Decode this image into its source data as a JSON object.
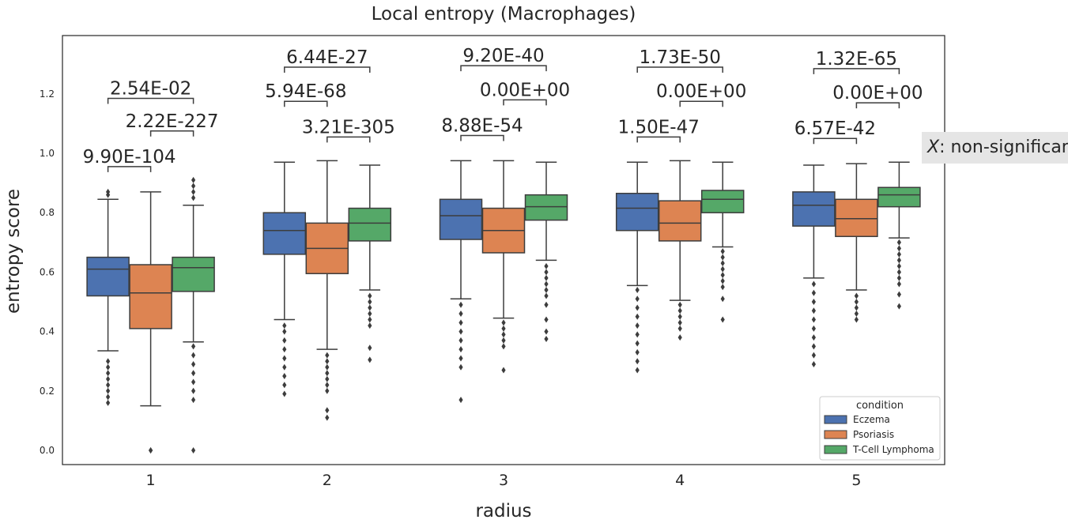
{
  "chart_data": {
    "type": "box",
    "title": "Local entropy (Macrophages)",
    "xlabel": "radius",
    "ylabel": "entropy score",
    "categories": [
      "1",
      "2",
      "3",
      "4",
      "5"
    ],
    "ylim": [
      -0.05,
      1.4
    ],
    "yticks": [
      0.0,
      0.2,
      0.4,
      0.6,
      0.8,
      1.0,
      1.2
    ],
    "ytick_labels": [
      "0.0",
      "0.2",
      "0.4",
      "0.6",
      "0.8",
      "1.0",
      "1.2"
    ],
    "grid": false,
    "legend": {
      "title": "condition",
      "position": "bottom-right",
      "entries": [
        "Eczema",
        "Psoriasis",
        "T-Cell Lymphoma"
      ]
    },
    "series": [
      {
        "name": "Eczema",
        "color": "#4c72b0",
        "boxes": [
          {
            "whislo": 0.335,
            "q1": 0.52,
            "med": 0.61,
            "q3": 0.65,
            "whishi": 0.845,
            "fliers_low": [
              0.3,
              0.28,
              0.26,
              0.24,
              0.22,
              0.2,
              0.18,
              0.16
            ],
            "fliers_high": [
              0.86,
              0.87
            ]
          },
          {
            "whislo": 0.44,
            "q1": 0.66,
            "med": 0.74,
            "q3": 0.8,
            "whishi": 0.97,
            "fliers_low": [
              0.42,
              0.4,
              0.37,
              0.34,
              0.31,
              0.28,
              0.25,
              0.22,
              0.19
            ],
            "fliers_high": []
          },
          {
            "whislo": 0.51,
            "q1": 0.71,
            "med": 0.79,
            "q3": 0.845,
            "whishi": 0.975,
            "fliers_low": [
              0.49,
              0.46,
              0.43,
              0.4,
              0.37,
              0.34,
              0.31,
              0.28,
              0.17
            ],
            "fliers_high": []
          },
          {
            "whislo": 0.555,
            "q1": 0.74,
            "med": 0.815,
            "q3": 0.865,
            "whishi": 0.97,
            "fliers_low": [
              0.54,
              0.51,
              0.48,
              0.45,
              0.42,
              0.39,
              0.36,
              0.33,
              0.3,
              0.27
            ],
            "fliers_high": []
          },
          {
            "whislo": 0.58,
            "q1": 0.755,
            "med": 0.825,
            "q3": 0.87,
            "whishi": 0.96,
            "fliers_low": [
              0.56,
              0.53,
              0.5,
              0.47,
              0.44,
              0.41,
              0.38,
              0.35,
              0.32,
              0.29
            ],
            "fliers_high": []
          }
        ]
      },
      {
        "name": "Psoriasis",
        "color": "#dd8452",
        "boxes": [
          {
            "whislo": 0.15,
            "q1": 0.41,
            "med": 0.53,
            "q3": 0.625,
            "whishi": 0.87,
            "fliers_low": [
              0.0,
              0.0
            ],
            "fliers_high": []
          },
          {
            "whislo": 0.34,
            "q1": 0.595,
            "med": 0.68,
            "q3": 0.765,
            "whishi": 0.975,
            "fliers_low": [
              0.32,
              0.3,
              0.28,
              0.26,
              0.24,
              0.22,
              0.2,
              0.135,
              0.11
            ],
            "fliers_high": []
          },
          {
            "whislo": 0.445,
            "q1": 0.665,
            "med": 0.74,
            "q3": 0.815,
            "whishi": 0.975,
            "fliers_low": [
              0.43,
              0.41,
              0.39,
              0.37,
              0.35,
              0.27
            ],
            "fliers_high": []
          },
          {
            "whislo": 0.505,
            "q1": 0.705,
            "med": 0.765,
            "q3": 0.84,
            "whishi": 0.975,
            "fliers_low": [
              0.49,
              0.47,
              0.45,
              0.43,
              0.41,
              0.38
            ],
            "fliers_high": []
          },
          {
            "whislo": 0.54,
            "q1": 0.72,
            "med": 0.78,
            "q3": 0.845,
            "whishi": 0.965,
            "fliers_low": [
              0.52,
              0.5,
              0.48,
              0.46,
              0.44
            ],
            "fliers_high": []
          }
        ]
      },
      {
        "name": "T-Cell Lymphoma",
        "color": "#55a868",
        "boxes": [
          {
            "whislo": 0.365,
            "q1": 0.535,
            "med": 0.615,
            "q3": 0.65,
            "whishi": 0.825,
            "fliers_low": [
              0.35,
              0.32,
              0.29,
              0.26,
              0.23,
              0.2,
              0.17,
              0.0
            ],
            "fliers_high": [
              0.85,
              0.87,
              0.89,
              0.91
            ]
          },
          {
            "whislo": 0.54,
            "q1": 0.705,
            "med": 0.765,
            "q3": 0.815,
            "whishi": 0.96,
            "fliers_low": [
              0.52,
              0.5,
              0.48,
              0.46,
              0.44,
              0.42,
              0.345,
              0.305
            ],
            "fliers_high": []
          },
          {
            "whislo": 0.64,
            "q1": 0.775,
            "med": 0.82,
            "q3": 0.86,
            "whishi": 0.97,
            "fliers_low": [
              0.62,
              0.6,
              0.58,
              0.56,
              0.54,
              0.52,
              0.49,
              0.44,
              0.4,
              0.375
            ],
            "fliers_high": []
          },
          {
            "whislo": 0.685,
            "q1": 0.8,
            "med": 0.845,
            "q3": 0.875,
            "whishi": 0.97,
            "fliers_low": [
              0.67,
              0.65,
              0.63,
              0.61,
              0.59,
              0.57,
              0.55,
              0.51,
              0.44
            ],
            "fliers_high": []
          },
          {
            "whislo": 0.715,
            "q1": 0.82,
            "med": 0.86,
            "q3": 0.885,
            "whishi": 0.97,
            "fliers_low": [
              0.7,
              0.68,
              0.66,
              0.64,
              0.62,
              0.6,
              0.58,
              0.56,
              0.525,
              0.485
            ],
            "fliers_high": []
          }
        ]
      }
    ],
    "annotations": [
      {
        "category": "1",
        "pair": [
          0,
          1
        ],
        "text": "9.90E-104",
        "y": 0.955
      },
      {
        "category": "1",
        "pair": [
          1,
          2
        ],
        "text": "2.22E-227",
        "y": 1.075
      },
      {
        "category": "1",
        "pair": [
          0,
          2
        ],
        "text": "2.54E-02",
        "y": 1.185
      },
      {
        "category": "2",
        "pair": [
          1,
          2
        ],
        "text": "3.21E-305",
        "y": 1.055
      },
      {
        "category": "2",
        "pair": [
          0,
          1
        ],
        "text": "5.94E-68",
        "y": 1.175
      },
      {
        "category": "2",
        "pair": [
          0,
          2
        ],
        "text": "6.44E-27",
        "y": 1.29
      },
      {
        "category": "3",
        "pair": [
          0,
          1
        ],
        "text": "8.88E-54",
        "y": 1.06
      },
      {
        "category": "3",
        "pair": [
          1,
          2
        ],
        "text": "0.00E+00",
        "y": 1.18
      },
      {
        "category": "3",
        "pair": [
          0,
          2
        ],
        "text": "9.20E-40",
        "y": 1.295
      },
      {
        "category": "4",
        "pair": [
          0,
          1
        ],
        "text": "1.50E-47",
        "y": 1.055
      },
      {
        "category": "4",
        "pair": [
          1,
          2
        ],
        "text": "0.00E+00",
        "y": 1.175
      },
      {
        "category": "4",
        "pair": [
          0,
          2
        ],
        "text": "1.73E-50",
        "y": 1.29
      },
      {
        "category": "5",
        "pair": [
          0,
          1
        ],
        "text": "6.57E-42",
        "y": 1.05
      },
      {
        "category": "5",
        "pair": [
          1,
          2
        ],
        "text": "0.00E+00",
        "y": 1.17
      },
      {
        "category": "5",
        "pair": [
          0,
          2
        ],
        "text": "1.32E-65",
        "y": 1.285
      }
    ]
  },
  "note": {
    "symbol": "X",
    "text": ": non-significant"
  }
}
